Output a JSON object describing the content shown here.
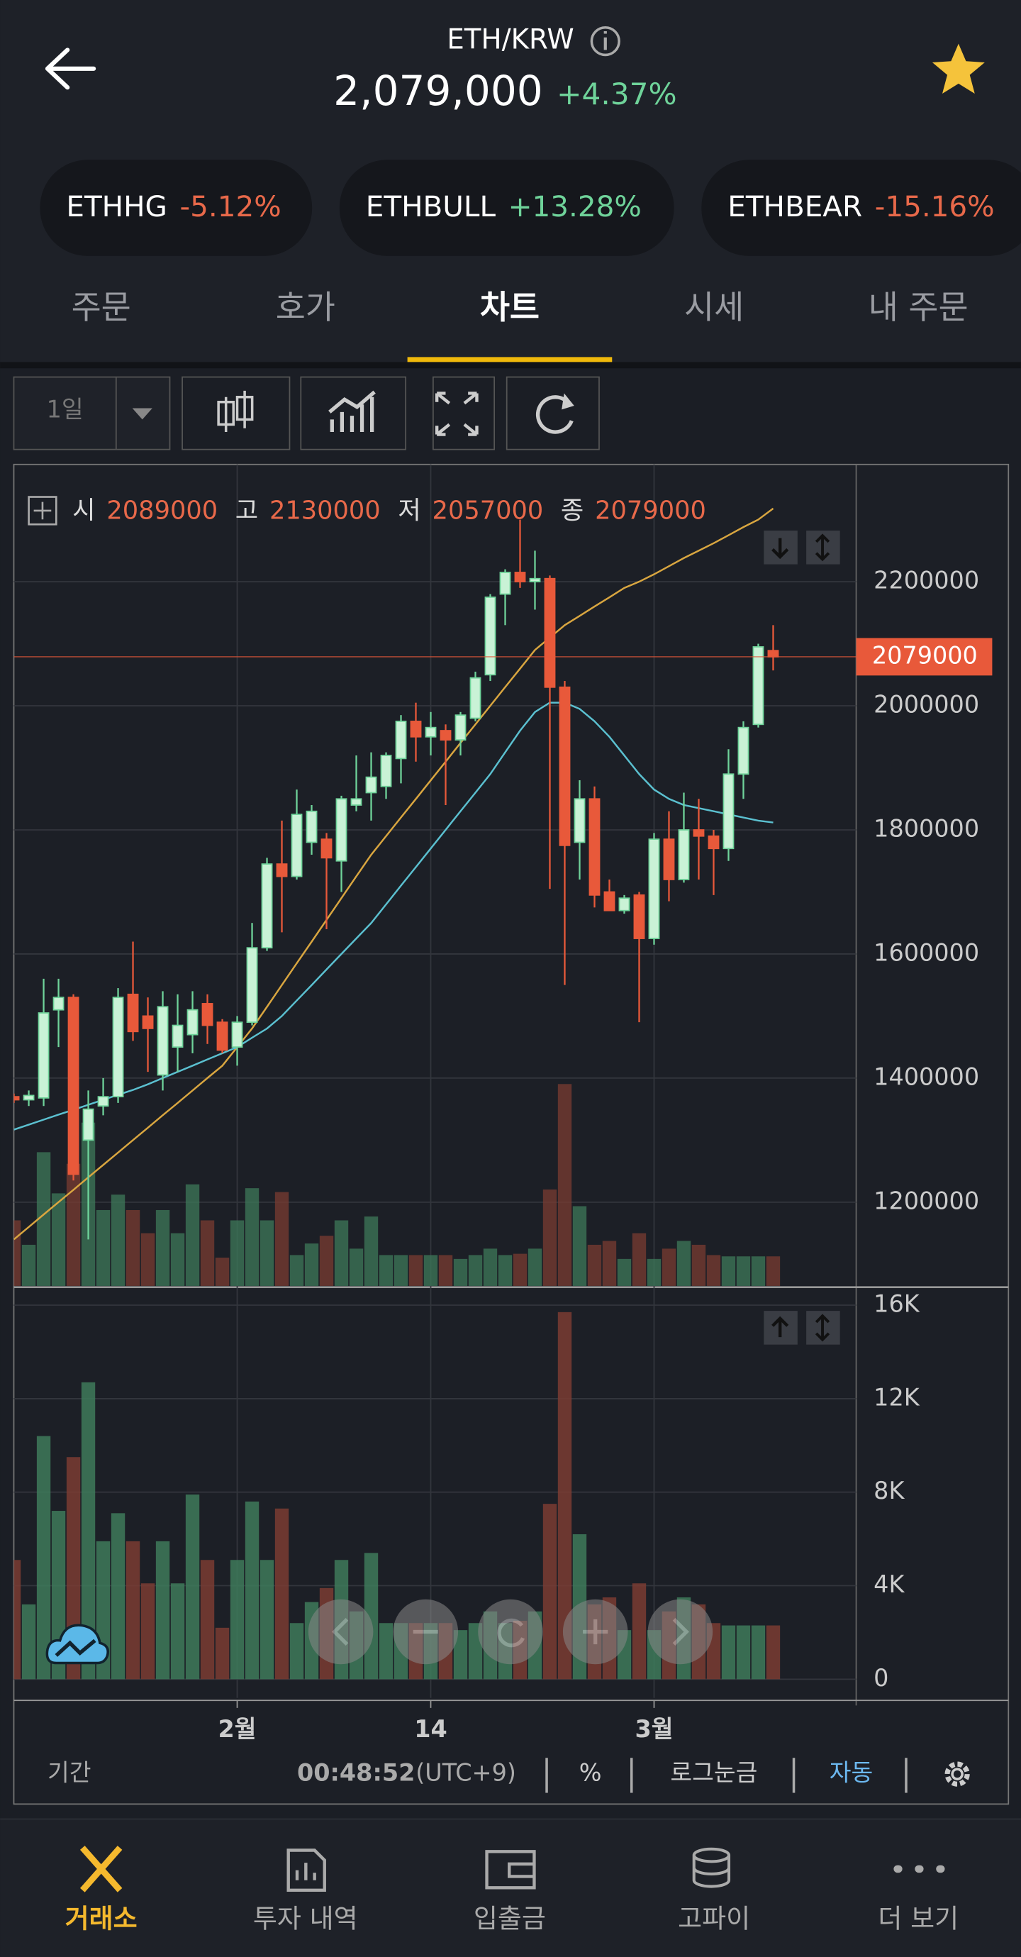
{
  "header": {
    "pair": "ETH/KRW",
    "price": "2,079,000",
    "change": "+4.37%"
  },
  "related": [
    {
      "name": "ETHHG",
      "change": "-5.12%"
    },
    {
      "name": "ETHBULL",
      "change": "+13.28%"
    },
    {
      "name": "ETHBEAR",
      "change": "-15.16%"
    }
  ],
  "tabs": [
    "주문",
    "호가",
    "차트",
    "시세",
    "내 주문"
  ],
  "active_tab": 2,
  "toolbar": {
    "period": "1일"
  },
  "chart_data": [
    {
      "type": "candlestick",
      "ohlc_legend": [
        {
          "label": "시",
          "value": 2089000
        },
        {
          "label": "고",
          "value": 2130000
        },
        {
          "label": "저",
          "value": 2057000
        },
        {
          "label": "종",
          "value": 2079000
        }
      ],
      "categories": [
        null,
        null,
        null,
        null,
        null,
        null,
        null,
        null,
        null,
        null,
        null,
        null,
        null,
        null,
        null,
        "2월",
        null,
        null,
        null,
        null,
        null,
        null,
        null,
        null,
        null,
        null,
        null,
        null,
        "14",
        null,
        null,
        null,
        null,
        null,
        null,
        null,
        null,
        null,
        null,
        null,
        null,
        null,
        null,
        "3월",
        null,
        null,
        null,
        null,
        null,
        null,
        null,
        null
      ],
      "open": [
        1370000,
        1365000,
        1368000,
        1510000,
        1530000,
        1300000,
        1355000,
        1370000,
        1535000,
        1500000,
        1405000,
        1450000,
        1470000,
        1520000,
        1490000,
        1450000,
        1490000,
        1610000,
        1745000,
        1725000,
        1780000,
        1785000,
        1750000,
        1840000,
        1860000,
        1870000,
        1915000,
        1975000,
        1950000,
        1960000,
        1945000,
        1980000,
        2050000,
        2180000,
        2215000,
        2200000,
        2205000,
        2030000,
        1780000,
        1850000,
        1700000,
        1670000,
        1695000,
        1625000,
        1785000,
        1720000,
        1800000,
        1790000,
        1770000,
        1890000,
        1970000,
        2089000
      ],
      "high": [
        1375000,
        1380000,
        1560000,
        1560000,
        1535000,
        1380000,
        1400000,
        1545000,
        1620000,
        1530000,
        1540000,
        1535000,
        1540000,
        1535000,
        1495000,
        1500000,
        1650000,
        1755000,
        1815000,
        1865000,
        1840000,
        1795000,
        1855000,
        1920000,
        1925000,
        1925000,
        1985000,
        2005000,
        1990000,
        1970000,
        1990000,
        2055000,
        2180000,
        2220000,
        2300000,
        2250000,
        2210000,
        2040000,
        1880000,
        1870000,
        1720000,
        1695000,
        1700000,
        1795000,
        1830000,
        1860000,
        1850000,
        1800000,
        1930000,
        1975000,
        2100000,
        2130000
      ],
      "low": [
        1360000,
        1355000,
        1355000,
        1450000,
        1235000,
        1140000,
        1340000,
        1360000,
        1460000,
        1410000,
        1380000,
        1410000,
        1440000,
        1455000,
        1440000,
        1420000,
        1485000,
        1605000,
        1635000,
        1720000,
        1760000,
        1640000,
        1700000,
        1830000,
        1815000,
        1850000,
        1875000,
        1910000,
        1920000,
        1840000,
        1920000,
        1975000,
        2040000,
        2130000,
        2190000,
        2155000,
        1705000,
        1550000,
        1720000,
        1675000,
        1670000,
        1665000,
        1490000,
        1615000,
        1685000,
        1715000,
        1720000,
        1695000,
        1750000,
        1850000,
        1965000,
        2057000
      ],
      "close": [
        1365000,
        1372000,
        1505000,
        1530000,
        1245000,
        1350000,
        1370000,
        1530000,
        1475000,
        1480000,
        1515000,
        1485000,
        1510000,
        1485000,
        1445000,
        1490000,
        1610000,
        1745000,
        1725000,
        1825000,
        1830000,
        1755000,
        1850000,
        1850000,
        1885000,
        1920000,
        1975000,
        1950000,
        1965000,
        1945000,
        1985000,
        2045000,
        2175000,
        2215000,
        2200000,
        2205000,
        2030000,
        1775000,
        1850000,
        1695000,
        1670000,
        1690000,
        1625000,
        1785000,
        1720000,
        1800000,
        1790000,
        1770000,
        1890000,
        1965000,
        2095000,
        2079000
      ],
      "up_color": "#6fd39a",
      "down_color": "#e8593a",
      "lines": [
        {
          "color": "#d9a640",
          "values": [
            1140000,
            1160000,
            1180000,
            1200000,
            1220000,
            1240000,
            1260000,
            1280000,
            1300000,
            1320000,
            1340000,
            1360000,
            1380000,
            1400000,
            1420000,
            1450000,
            1480000,
            1515000,
            1550000,
            1585000,
            1620000,
            1655000,
            1690000,
            1725000,
            1760000,
            1790000,
            1820000,
            1850000,
            1880000,
            1910000,
            1940000,
            1970000,
            2000000,
            2030000,
            2060000,
            2090000,
            2110000,
            2130000,
            2145000,
            2160000,
            2175000,
            2190000,
            2200000,
            2212000,
            2225000,
            2238000,
            2250000,
            2262000,
            2275000,
            2288000,
            2300000,
            2318000
          ]
        },
        {
          "color": "#5bc0d0",
          "values": [
            1317000,
            1325000,
            1333000,
            1341000,
            1349000,
            1357000,
            1365000,
            1373000,
            1381000,
            1390000,
            1400000,
            1410000,
            1420000,
            1430000,
            1440000,
            1450000,
            1465000,
            1480000,
            1500000,
            1525000,
            1550000,
            1575000,
            1600000,
            1625000,
            1650000,
            1680000,
            1710000,
            1740000,
            1770000,
            1800000,
            1830000,
            1860000,
            1890000,
            1925000,
            1960000,
            1990000,
            2005000,
            2005000,
            1995000,
            1975000,
            1950000,
            1920000,
            1890000,
            1865000,
            1850000,
            1840000,
            1835000,
            1830000,
            1825000,
            1820000,
            1815000,
            1812000
          ]
        }
      ],
      "last_price": 2079000,
      "ylim": [
        1065000,
        2389000
      ],
      "yticks": [
        1200000,
        1400000,
        1600000,
        1800000,
        2000000,
        2200000
      ],
      "grid": true
    },
    {
      "type": "bar",
      "values": [
        5100,
        3200,
        10400,
        7200,
        9500,
        12700,
        5900,
        7100,
        5900,
        4100,
        5900,
        4100,
        7900,
        5100,
        2200,
        5100,
        7600,
        5100,
        7300,
        2400,
        3300,
        3900,
        5100,
        2900,
        5400,
        2400,
        2400,
        2400,
        2400,
        2400,
        2100,
        2400,
        2900,
        2400,
        2500,
        2900,
        7500,
        15700,
        6200,
        3200,
        3500,
        2100,
        4100,
        2100,
        2900,
        3500,
        3200,
        2400,
        2300,
        2300,
        2300,
        2300
      ],
      "up_color": "#3e7a5a",
      "down_color": "#7a3c32",
      "ylim": [
        0,
        16500
      ],
      "yticks": [
        0,
        {
          "value": 4000,
          "label": "4K"
        },
        {
          "value": 8000,
          "label": "8K"
        },
        {
          "value": 12000,
          "label": "12K"
        },
        {
          "value": 16000,
          "label": "16K"
        }
      ],
      "grid": true
    }
  ],
  "footer": {
    "period_label": "기간",
    "time": "00:48:52",
    "tz": "(UTC+9)",
    "percent": "%",
    "log": "로그눈금",
    "auto": "자동"
  },
  "nav": [
    "거래소",
    "투자 내역",
    "입출금",
    "고파이",
    "더 보기"
  ],
  "active_nav": 0
}
